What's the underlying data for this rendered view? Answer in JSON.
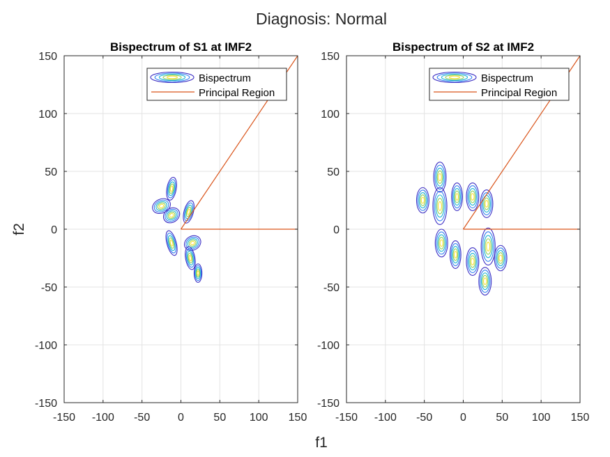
{
  "figure": {
    "suptitle": "Diagnosis: Normal",
    "xlabel": "f1",
    "ylabel": "f2"
  },
  "chart_data": [
    {
      "type": "contour",
      "title": "Bispectrum of S1 at IMF2",
      "xlim": [
        -150,
        150
      ],
      "ylim": [
        -150,
        150
      ],
      "xticks": [
        -150,
        -100,
        -50,
        0,
        50,
        100,
        150
      ],
      "yticks": [
        -150,
        -100,
        -50,
        0,
        50,
        100,
        150
      ],
      "grid": true,
      "legend": {
        "placement": "top-right",
        "entries": [
          "Bispectrum",
          "Principal Region"
        ]
      },
      "contour_levels": 5,
      "contour_colors": [
        "#3b2ec4",
        "#2f7ff2",
        "#15b3cf",
        "#8fcf55",
        "#f7e034"
      ],
      "blobs": [
        {
          "x": -25,
          "y": 20,
          "rx": 12,
          "ry": 6,
          "rot": -25
        },
        {
          "x": -12,
          "y": 12,
          "rx": 11,
          "ry": 6,
          "rot": -35
        },
        {
          "x": -12,
          "y": 35,
          "rx": 6,
          "ry": 10,
          "rot": 10
        },
        {
          "x": 10,
          "y": 15,
          "rx": 6,
          "ry": 10,
          "rot": 15
        },
        {
          "x": -12,
          "y": -12,
          "rx": 6,
          "ry": 11,
          "rot": -15
        },
        {
          "x": 15,
          "y": -12,
          "rx": 11,
          "ry": 6,
          "rot": -30
        },
        {
          "x": 12,
          "y": -25,
          "rx": 6,
          "ry": 10,
          "rot": -10
        },
        {
          "x": 22,
          "y": -38,
          "rx": 5,
          "ry": 8,
          "rot": 0
        }
      ],
      "principal_region": {
        "diagonal": [
          [
            0,
            0
          ],
          [
            150,
            150
          ]
        ],
        "horizontal": [
          [
            0,
            0
          ],
          [
            150,
            0
          ]
        ]
      }
    },
    {
      "type": "contour",
      "title": "Bispectrum of S2 at IMF2",
      "xlim": [
        -150,
        150
      ],
      "ylim": [
        -150,
        150
      ],
      "xticks": [
        -150,
        -100,
        -50,
        0,
        50,
        100,
        150
      ],
      "yticks": [
        -150,
        -100,
        -50,
        0,
        50,
        100,
        150
      ],
      "grid": true,
      "legend": {
        "placement": "top-right",
        "entries": [
          "Bispectrum",
          "Principal Region"
        ]
      },
      "contour_levels": 5,
      "contour_colors": [
        "#3b2ec4",
        "#2f7ff2",
        "#15b3cf",
        "#8fcf55",
        "#f7e034"
      ],
      "blobs": [
        {
          "x": -52,
          "y": 25,
          "rx": 8,
          "ry": 11,
          "rot": 0
        },
        {
          "x": -30,
          "y": 45,
          "rx": 8,
          "ry": 13,
          "rot": 0
        },
        {
          "x": -30,
          "y": 20,
          "rx": 9,
          "ry": 16,
          "rot": 0
        },
        {
          "x": -8,
          "y": 28,
          "rx": 7,
          "ry": 12,
          "rot": 0
        },
        {
          "x": 12,
          "y": 28,
          "rx": 8,
          "ry": 12,
          "rot": 0
        },
        {
          "x": 30,
          "y": 22,
          "rx": 8,
          "ry": 12,
          "rot": 0
        },
        {
          "x": -28,
          "y": -12,
          "rx": 8,
          "ry": 12,
          "rot": 0
        },
        {
          "x": -10,
          "y": -22,
          "rx": 7,
          "ry": 12,
          "rot": 0
        },
        {
          "x": 12,
          "y": -28,
          "rx": 8,
          "ry": 12,
          "rot": 0
        },
        {
          "x": 32,
          "y": -15,
          "rx": 9,
          "ry": 16,
          "rot": 0
        },
        {
          "x": 48,
          "y": -25,
          "rx": 8,
          "ry": 11,
          "rot": 0
        },
        {
          "x": 28,
          "y": -45,
          "rx": 8,
          "ry": 12,
          "rot": 0
        }
      ],
      "principal_region": {
        "diagonal": [
          [
            0,
            0
          ],
          [
            150,
            150
          ]
        ],
        "horizontal": [
          [
            0,
            0
          ],
          [
            150,
            0
          ]
        ]
      }
    }
  ]
}
